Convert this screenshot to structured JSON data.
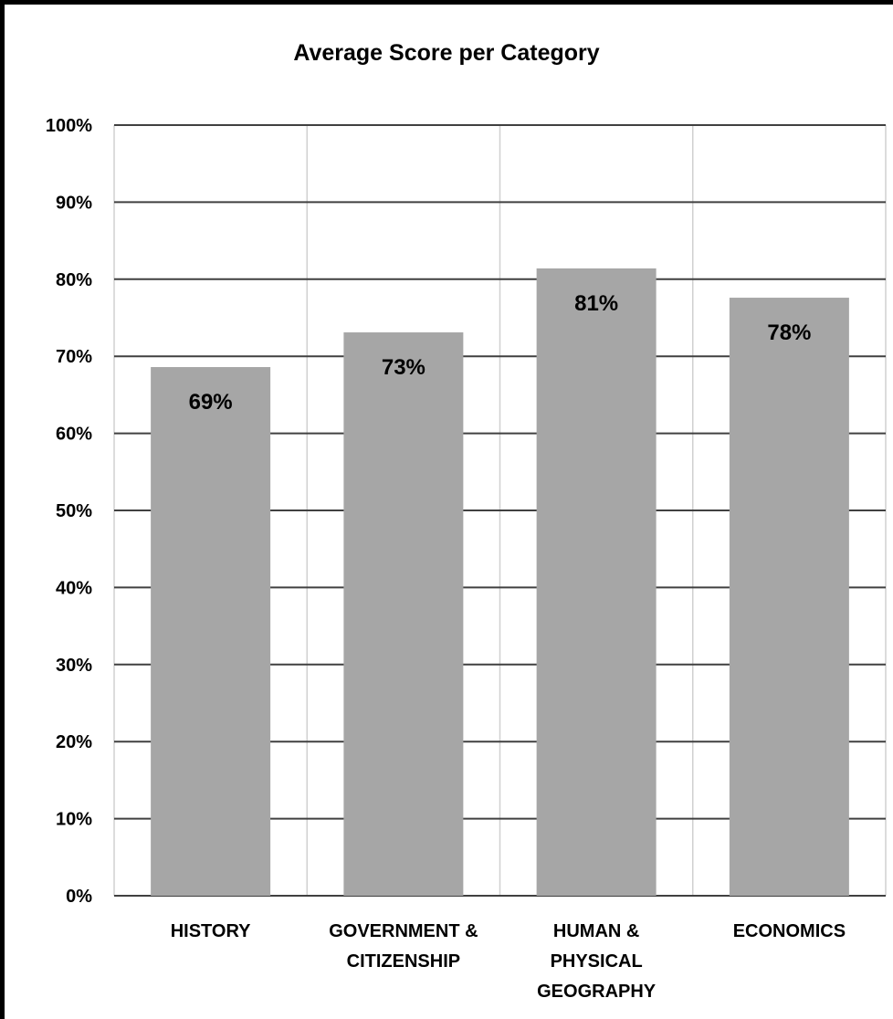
{
  "chart_data": {
    "type": "bar",
    "title": "Average Score per Category",
    "xlabel": "",
    "ylabel": "",
    "categories": [
      "HISTORY",
      "GOVERNMENT & CITIZENSHIP",
      "HUMAN & PHYSICAL GEOGRAPHY",
      "ECONOMICS"
    ],
    "category_lines": [
      [
        "HISTORY"
      ],
      [
        "GOVERNMENT &",
        "CITIZENSHIP"
      ],
      [
        "HUMAN &",
        "PHYSICAL",
        "GEOGRAPHY"
      ],
      [
        "ECONOMICS"
      ]
    ],
    "values": [
      68.6,
      73.1,
      81.4,
      77.6
    ],
    "data_labels": [
      "69%",
      "73%",
      "81%",
      "78%"
    ],
    "ylim": [
      0,
      100
    ],
    "yticks": [
      0,
      10,
      20,
      30,
      40,
      50,
      60,
      70,
      80,
      90,
      100
    ],
    "ytick_labels": [
      "0%",
      "10%",
      "20%",
      "30%",
      "40%",
      "50%",
      "60%",
      "70%",
      "80%",
      "90%",
      "100%"
    ],
    "grid": true,
    "legend": "none",
    "colors": {
      "bar": "#a6a6a6",
      "gridline": "#404040",
      "category_divider": "#d0d0d0",
      "frame": "#000000"
    }
  }
}
